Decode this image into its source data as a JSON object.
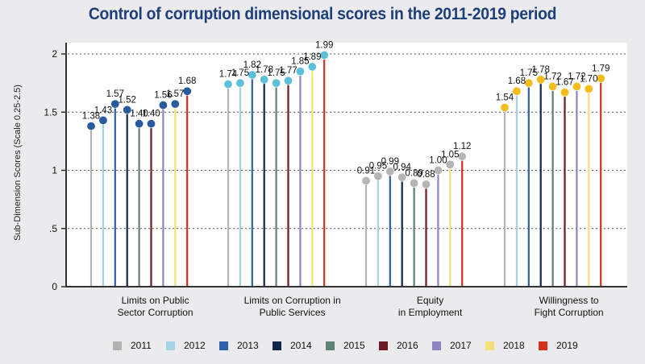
{
  "chart_data": {
    "type": "scatter",
    "subtype": "lollipop-grouped",
    "title": "Control of corruption dimensional scores in the 2011-2019 period",
    "xlabel": "",
    "ylabel": "Sub-Dimension Scores (Scale 0.25-2.5)",
    "ylim": [
      0,
      2.05
    ],
    "yticks": [
      0,
      0.5,
      1,
      1.5,
      2
    ],
    "ytick_labels": [
      "0",
      ".5",
      "1",
      "1.5",
      "2"
    ],
    "grid": "horizontal dotted",
    "legend_position": "bottom",
    "categories": [
      "Limits on Public\nSector Corruption",
      "Limits on Corruption in\nPublic Services",
      "Equity\nin Employment",
      "Willingness to\nFight Corruption"
    ],
    "marker_colors": [
      "#2a5a9e",
      "#5bc0d8",
      "#b5b5b5",
      "#f4bd1c"
    ],
    "series": [
      {
        "name": "2011",
        "color": "#b3b3b3",
        "values": [
          1.38,
          1.74,
          0.91,
          1.54
        ]
      },
      {
        "name": "2012",
        "color": "#a6d3e3",
        "values": [
          1.43,
          1.75,
          0.95,
          1.68
        ]
      },
      {
        "name": "2013",
        "color": "#2e5fa8",
        "values": [
          1.57,
          1.82,
          0.99,
          1.75
        ]
      },
      {
        "name": "2014",
        "color": "#10254a",
        "values": [
          1.52,
          1.78,
          0.94,
          1.78
        ]
      },
      {
        "name": "2015",
        "color": "#5d8272",
        "values": [
          1.4,
          1.75,
          0.89,
          1.72
        ]
      },
      {
        "name": "2016",
        "color": "#6e1a24",
        "values": [
          1.4,
          1.77,
          0.88,
          1.67
        ]
      },
      {
        "name": "2017",
        "color": "#8a85c0",
        "values": [
          1.56,
          1.85,
          1.0,
          1.72
        ]
      },
      {
        "name": "2018",
        "color": "#f6e07a",
        "values": [
          1.57,
          1.89,
          1.05,
          1.7
        ]
      },
      {
        "name": "2019",
        "color": "#d52f1e",
        "values": [
          1.68,
          1.99,
          1.12,
          1.79
        ]
      }
    ],
    "value_labels": [
      [
        "1.38",
        "1.43",
        "1.57",
        "1.52",
        "1.40",
        "1.40",
        "1.56",
        "1.57",
        "1.68"
      ],
      [
        "1.74",
        "1.75",
        "1.82",
        "1.78",
        "1.75",
        "1.77",
        "1.85",
        "1.89",
        "1.99"
      ],
      [
        "0.91",
        "0.95",
        "0.99",
        "0.94",
        "0.89",
        "0.88",
        "1.00",
        "1.05",
        "1.12"
      ],
      [
        "1.54",
        "1.68",
        "1.75",
        "1.78",
        "1.72",
        "1.67",
        "1.72",
        "1.70",
        "1.79"
      ]
    ]
  }
}
